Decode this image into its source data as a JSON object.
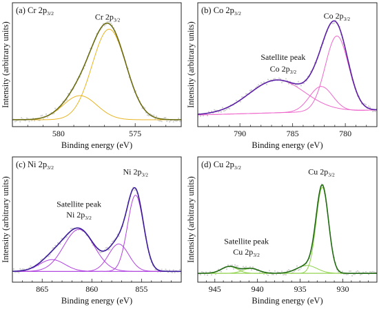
{
  "chart_data": [
    {
      "type": "line",
      "panel_label": "(a) Cr 2p",
      "panel_label_sub": "3/2",
      "xlabel": "Binding energy (eV)",
      "ylabel": "Intensity (arbitrary units)",
      "xlim": [
        583,
        572
      ],
      "x_ticks": [
        580,
        575
      ],
      "y_range": [
        0,
        1
      ],
      "y_ticks_shown": false,
      "colors": {
        "envelope": "#6b6b12",
        "component": "#e8b420",
        "data": "#cfcfcf"
      },
      "peaks": [
        {
          "position": 576.7,
          "amplitude": 0.94,
          "fwhm": 2.6
        },
        {
          "position": 578.6,
          "amplitude": 0.25,
          "fwhm": 2.6
        }
      ],
      "background": {
        "slope": 0.0,
        "offset": 0.0
      },
      "annotations": [
        {
          "text": "Cr 2p",
          "sub": "3/2",
          "x": 576.8,
          "y": 1.04
        }
      ]
    },
    {
      "type": "line",
      "panel_label": "(b) Co 2p",
      "panel_label_sub": "3/2",
      "xlabel": "Binding energy (eV)",
      "ylabel": "Intensity (arbitrary units)",
      "xlim": [
        794,
        777
      ],
      "x_ticks": [
        790,
        785,
        780
      ],
      "y_range": [
        0,
        1
      ],
      "y_ticks_shown": false,
      "colors": {
        "envelope": "#5b1fa6",
        "component": "#ee66cc",
        "data": "#cfcfcf"
      },
      "peaks": [
        {
          "position": 780.8,
          "amplitude": 0.78,
          "fwhm": 2.6
        },
        {
          "position": 782.3,
          "amplitude": 0.26,
          "fwhm": 2.6
        },
        {
          "position": 786.5,
          "amplitude": 0.34,
          "fwhm": 6.2
        }
      ],
      "background": {
        "slope": -0.003,
        "offset": 0.05
      },
      "annotations": [
        {
          "text": "Co 2p",
          "sub": "3/2",
          "x": 780.8,
          "y": 1.05
        },
        {
          "text": "Satellite peak",
          "sub": "",
          "x": 785.9,
          "y": 0.62
        },
        {
          "text": "Co 2p",
          "sub": "3/2",
          "x": 785.9,
          "y": 0.5
        }
      ]
    },
    {
      "type": "line",
      "panel_label": "(c) Ni 2p",
      "panel_label_sub": "3/2",
      "xlabel": "Binding energy (eV)",
      "ylabel": "Intensity (arbitrary units)",
      "xlim": [
        868,
        851
      ],
      "x_ticks": [
        865,
        860,
        855
      ],
      "y_range": [
        0,
        1
      ],
      "y_ticks_shown": false,
      "colors": {
        "envelope": "#3a1a9a",
        "component": "#b040e0",
        "data": "#cfcfcf"
      },
      "peaks": [
        {
          "position": 855.6,
          "amplitude": 0.78,
          "fwhm": 1.9
        },
        {
          "position": 857.3,
          "amplitude": 0.28,
          "fwhm": 2.4
        },
        {
          "position": 861.3,
          "amplitude": 0.43,
          "fwhm": 3.6
        },
        {
          "position": 864.0,
          "amplitude": 0.12,
          "fwhm": 3.0
        }
      ],
      "background": {
        "slope": 0.0,
        "offset": 0.04
      },
      "annotations": [
        {
          "text": "Ni 2p",
          "sub": "3/2",
          "x": 855.6,
          "y": 1.03
        },
        {
          "text": "Satellite peak",
          "sub": "",
          "x": 861.3,
          "y": 0.7
        },
        {
          "text": "Ni 2p",
          "sub": "3/2",
          "x": 861.3,
          "y": 0.59
        }
      ]
    },
    {
      "type": "line",
      "panel_label": "(d) Cu 2p",
      "panel_label_sub": "3/2",
      "xlabel": "Binding energy (eV)",
      "ylabel": "Intensity (arbitrary units)",
      "xlim": [
        947,
        926
      ],
      "x_ticks": [
        945,
        940,
        935,
        930
      ],
      "y_range": [
        0,
        1
      ],
      "y_ticks_shown": false,
      "colors": {
        "envelope": "#1f6a10",
        "component": "#8ed24a",
        "data": "#cfcfcf"
      },
      "peaks": [
        {
          "position": 932.4,
          "amplitude": 0.88,
          "fwhm": 1.7
        },
        {
          "position": 934.2,
          "amplitude": 0.08,
          "fwhm": 2.8
        },
        {
          "position": 943.3,
          "amplitude": 0.07,
          "fwhm": 2.2
        },
        {
          "position": 940.8,
          "amplitude": 0.05,
          "fwhm": 2.2
        }
      ],
      "background": {
        "slope": 0.0,
        "offset": 0.02
      },
      "annotations": [
        {
          "text": "Cu 2p",
          "sub": "3/2",
          "x": 932.5,
          "y": 1.03
        },
        {
          "text": "Satellite peak",
          "sub": "",
          "x": 941.3,
          "y": 0.32
        },
        {
          "text": "Cu 2p",
          "sub": "3/2",
          "x": 941.3,
          "y": 0.21
        }
      ]
    }
  ]
}
